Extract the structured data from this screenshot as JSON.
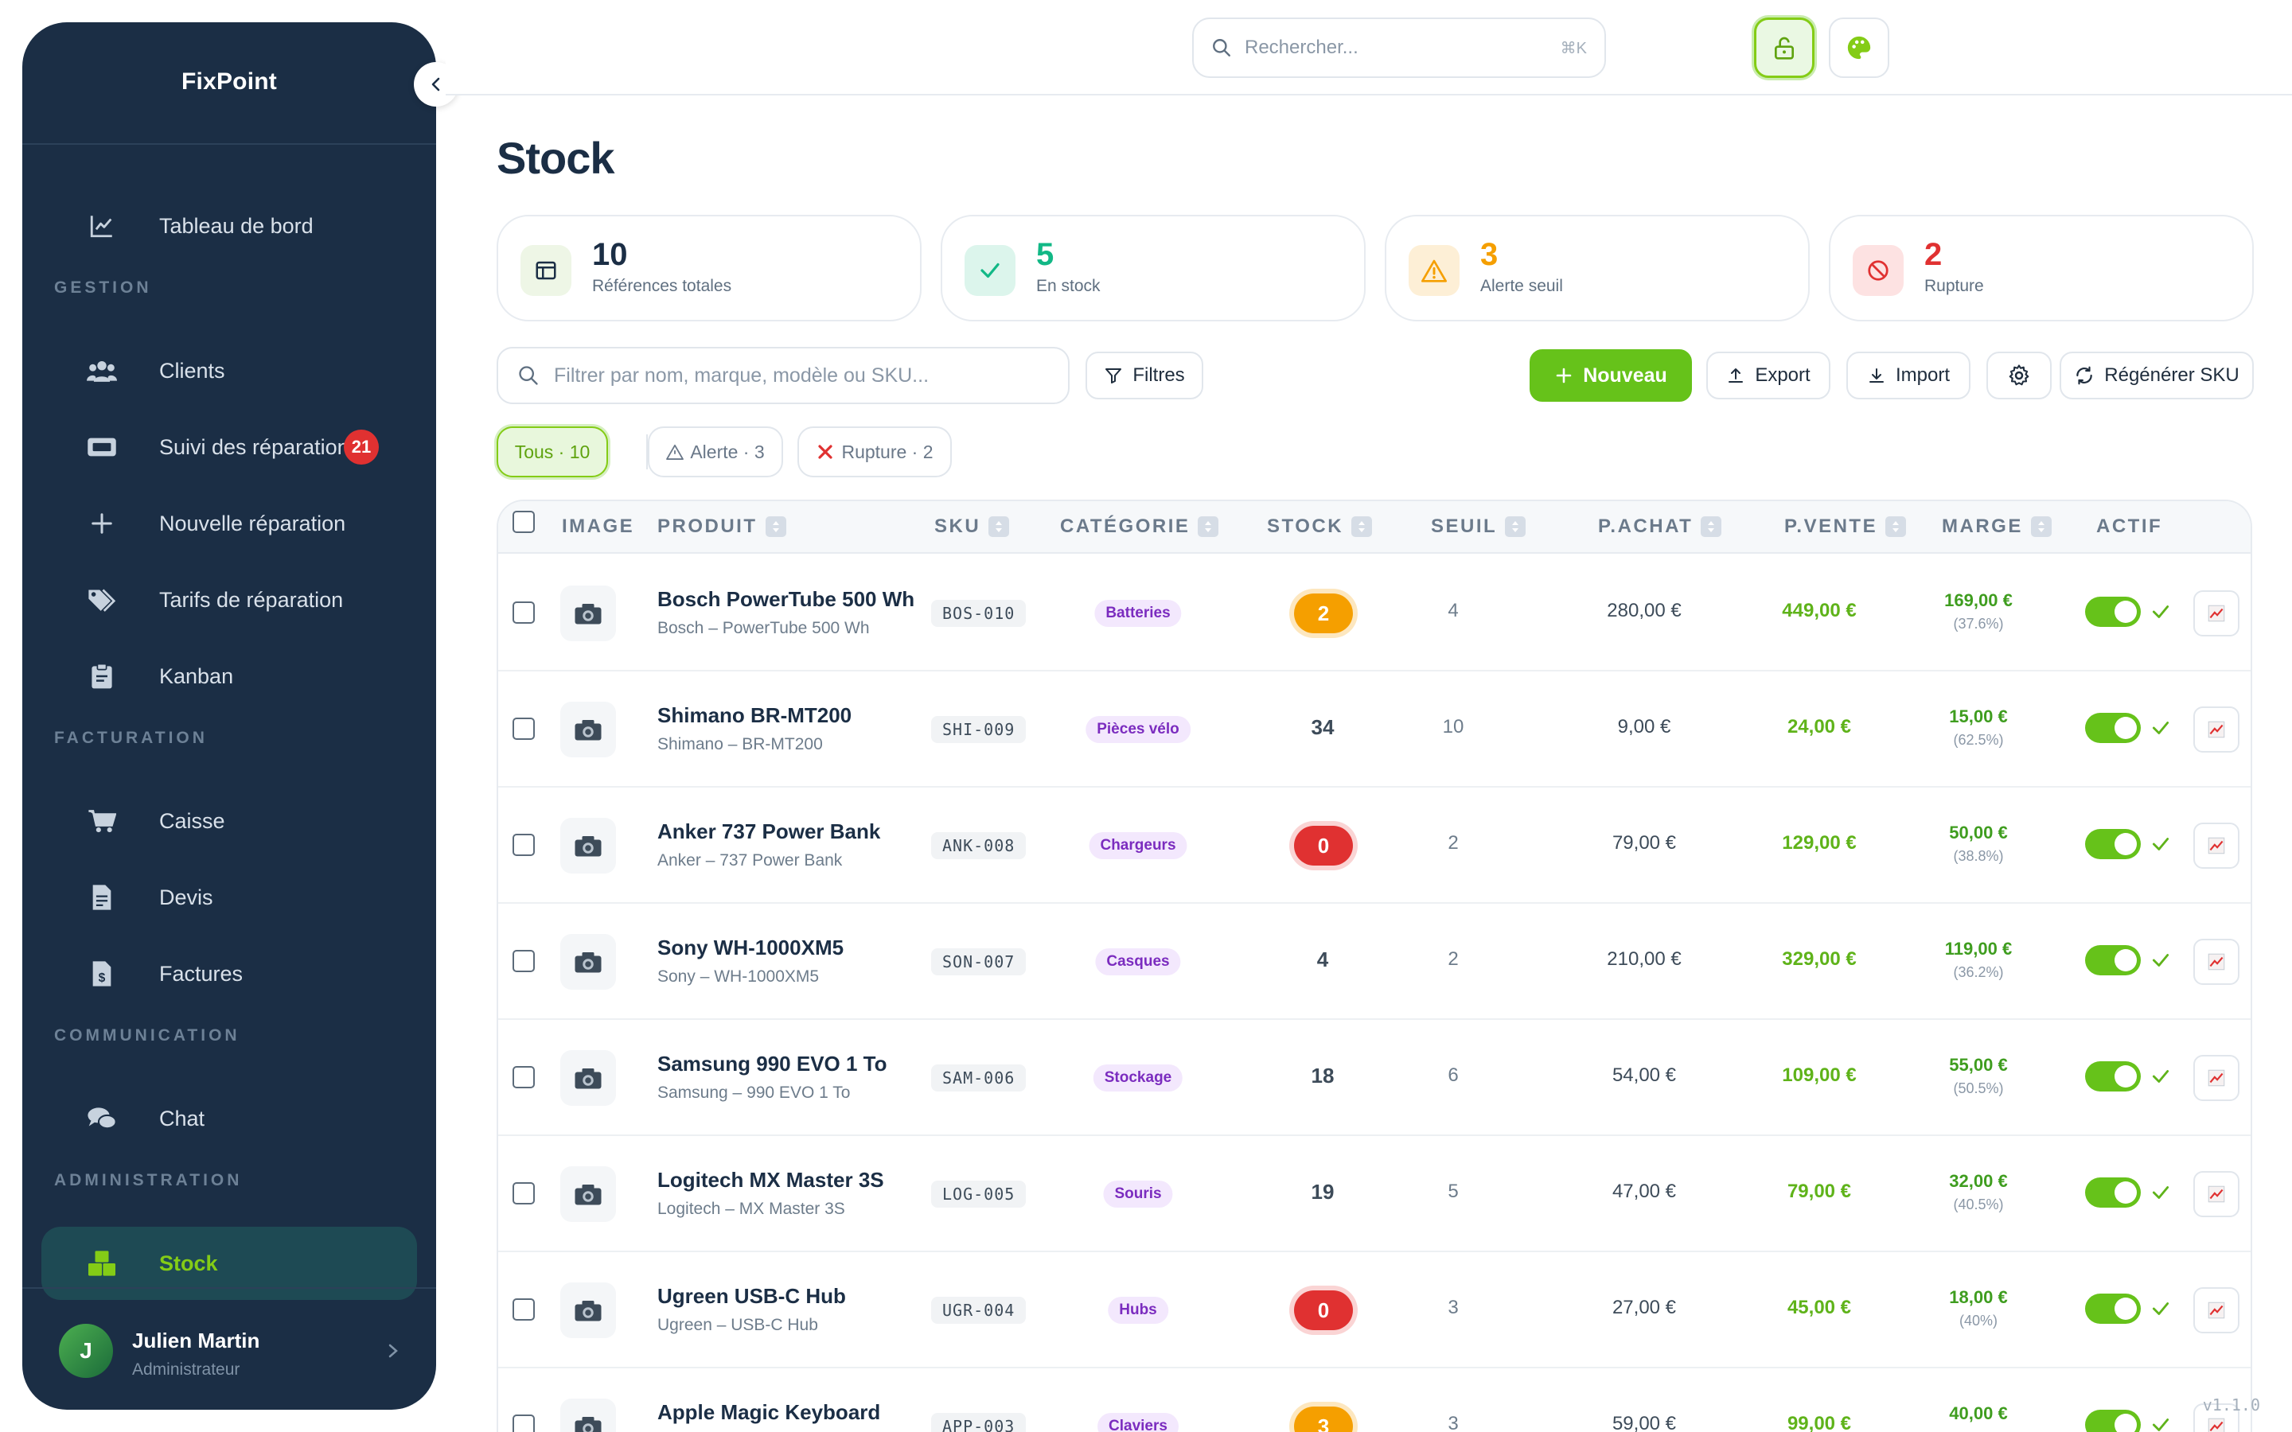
{
  "app": {
    "name": "FixPoint",
    "version": "v1.1.0"
  },
  "sidebar": {
    "dashboard": "Tableau de bord",
    "sections": {
      "gestion": "GESTION",
      "facturation": "FACTURATION",
      "communication": "COMMUNICATION",
      "administration": "ADMINISTRATION"
    },
    "items": {
      "clients": "Clients",
      "repairs": "Suivi des réparations",
      "repairs_badge": "21",
      "new_repair": "Nouvelle réparation",
      "tariffs": "Tarifs de réparation",
      "kanban": "Kanban",
      "caisse": "Caisse",
      "devis": "Devis",
      "factures": "Factures",
      "chat": "Chat",
      "stock": "Stock"
    },
    "user": {
      "initial": "J",
      "name": "Julien Martin",
      "role": "Administrateur"
    }
  },
  "topbar": {
    "search_placeholder": "Rechercher...",
    "shortcut": "⌘K"
  },
  "page": {
    "title": "Stock"
  },
  "stats": [
    {
      "value": "10",
      "label": "Références totales",
      "color": "#1b2e45"
    },
    {
      "value": "5",
      "label": "En stock",
      "color": "#12b886"
    },
    {
      "value": "3",
      "label": "Alerte seuil",
      "color": "#f59f00"
    },
    {
      "value": "2",
      "label": "Rupture",
      "color": "#e03131"
    }
  ],
  "toolbar": {
    "filter_placeholder": "Filtrer par nom, marque, modèle ou SKU...",
    "filters": "Filtres",
    "new": "Nouveau",
    "export": "Export",
    "import": "Import",
    "regen": "Régénérer SKU"
  },
  "chips": {
    "all": "Tous · 10",
    "alert": "Alerte · 3",
    "out": "Rupture · 2"
  },
  "table": {
    "headers": {
      "image": "IMAGE",
      "product": "PRODUIT",
      "sku": "SKU",
      "category": "CATÉGORIE",
      "stock": "STOCK",
      "seuil": "SEUIL",
      "pachat": "P.ACHAT",
      "pvente": "P.VENTE",
      "marge": "MARGE",
      "actif": "ACTIF"
    },
    "rows": [
      {
        "name": "Bosch PowerTube 500 Wh",
        "sub": "Bosch – PowerTube 500 Wh",
        "sku": "BOS-010",
        "category": "Batteries",
        "stock": "2",
        "stock_state": "warn",
        "seuil": "4",
        "pachat": "280,00 €",
        "pvente": "449,00 €",
        "marge": "169,00 €",
        "marge_pct": "(37.6%)"
      },
      {
        "name": "Shimano BR-MT200",
        "sub": "Shimano – BR-MT200",
        "sku": "SHI-009",
        "category": "Pièces vélo",
        "stock": "34",
        "stock_state": "ok",
        "seuil": "10",
        "pachat": "9,00 €",
        "pvente": "24,00 €",
        "marge": "15,00 €",
        "marge_pct": "(62.5%)"
      },
      {
        "name": "Anker 737 Power Bank",
        "sub": "Anker – 737 Power Bank",
        "sku": "ANK-008",
        "category": "Chargeurs",
        "stock": "0",
        "stock_state": "out",
        "seuil": "2",
        "pachat": "79,00 €",
        "pvente": "129,00 €",
        "marge": "50,00 €",
        "marge_pct": "(38.8%)"
      },
      {
        "name": "Sony WH-1000XM5",
        "sub": "Sony – WH-1000XM5",
        "sku": "SON-007",
        "category": "Casques",
        "stock": "4",
        "stock_state": "ok",
        "seuil": "2",
        "pachat": "210,00 €",
        "pvente": "329,00 €",
        "marge": "119,00 €",
        "marge_pct": "(36.2%)"
      },
      {
        "name": "Samsung 990 EVO 1 To",
        "sub": "Samsung – 990 EVO 1 To",
        "sku": "SAM-006",
        "category": "Stockage",
        "stock": "18",
        "stock_state": "ok",
        "seuil": "6",
        "pachat": "54,00 €",
        "pvente": "109,00 €",
        "marge": "55,00 €",
        "marge_pct": "(50.5%)"
      },
      {
        "name": "Logitech MX Master 3S",
        "sub": "Logitech – MX Master 3S",
        "sku": "LOG-005",
        "category": "Souris",
        "stock": "19",
        "stock_state": "ok",
        "seuil": "5",
        "pachat": "47,00 €",
        "pvente": "79,00 €",
        "marge": "32,00 €",
        "marge_pct": "(40.5%)"
      },
      {
        "name": "Ugreen USB-C Hub",
        "sub": "Ugreen – USB-C Hub",
        "sku": "UGR-004",
        "category": "Hubs",
        "stock": "0",
        "stock_state": "out",
        "seuil": "3",
        "pachat": "27,00 €",
        "pvente": "45,00 €",
        "marge": "18,00 €",
        "marge_pct": "(40%)"
      },
      {
        "name": "Apple Magic Keyboard",
        "sub": "",
        "sku": "APP-003",
        "category": "Claviers",
        "stock": "3",
        "stock_state": "warn",
        "seuil": "3",
        "pachat": "59,00 €",
        "pvente": "99,00 €",
        "marge": "40,00 €",
        "marge_pct": ""
      }
    ]
  }
}
